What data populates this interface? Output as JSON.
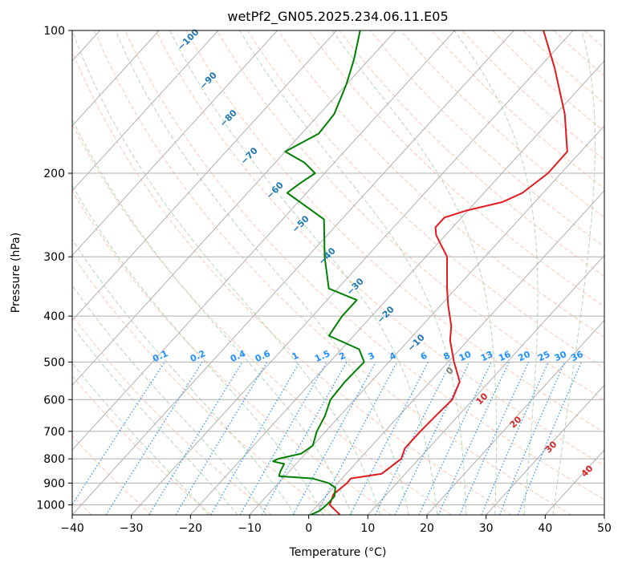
{
  "chart_data": {
    "type": "line",
    "title": "wetPf2_GN05.2025.234.06.11.E05",
    "xlabel": "Temperature (°C)",
    "ylabel": "Pressure (hPa)",
    "xlim": [
      -40,
      50
    ],
    "ylim": [
      1050,
      100
    ],
    "y_scale": "log",
    "skew": true,
    "grid": true,
    "x_ticks": [
      "−40",
      "−30",
      "−20",
      "−10",
      "0",
      "10",
      "20",
      "30",
      "40",
      "50"
    ],
    "y_ticks": [
      "100",
      "200",
      "300",
      "400",
      "500",
      "600",
      "700",
      "800",
      "900",
      "1000"
    ],
    "series": [
      {
        "color": "#e31a1c",
        "points": [
          [
            1050,
            5.3
          ],
          [
            1000,
            2.0
          ],
          [
            950,
            1.0
          ],
          [
            900,
            1.6
          ],
          [
            880,
            1.5
          ],
          [
            860,
            6.0
          ],
          [
            800,
            7.0
          ],
          [
            760,
            6.0
          ],
          [
            700,
            6.0
          ],
          [
            650,
            6.2
          ],
          [
            600,
            6.5
          ],
          [
            550,
            5.0
          ],
          [
            500,
            1.0
          ],
          [
            450,
            -3.0
          ],
          [
            420,
            -5.0
          ],
          [
            380,
            -8.7
          ],
          [
            350,
            -11.5
          ],
          [
            300,
            -16.4
          ],
          [
            270,
            -21.6
          ],
          [
            260,
            -22.9
          ],
          [
            248,
            -22.9
          ],
          [
            240,
            -20.4
          ],
          [
            230,
            -15.5
          ],
          [
            220,
            -13.5
          ],
          [
            200,
            -12.2
          ],
          [
            180,
            -12.3
          ],
          [
            150,
            -18.5
          ],
          [
            120,
            -27.3
          ],
          [
            100,
            -35.0
          ]
        ]
      },
      {
        "color": "#008000",
        "points": [
          [
            1050,
            0.3
          ],
          [
            1030,
            1.2
          ],
          [
            1000,
            1.5
          ],
          [
            960,
            1.5
          ],
          [
            920,
            0.3
          ],
          [
            900,
            -1.5
          ],
          [
            880,
            -5.0
          ],
          [
            870,
            -11.0
          ],
          [
            850,
            -11.5
          ],
          [
            820,
            -12.0
          ],
          [
            810,
            -14.3
          ],
          [
            800,
            -13.8
          ],
          [
            780,
            -10.7
          ],
          [
            750,
            -10.0
          ],
          [
            700,
            -11.5
          ],
          [
            650,
            -12.5
          ],
          [
            600,
            -14.1
          ],
          [
            550,
            -14.4
          ],
          [
            500,
            -14.2
          ],
          [
            470,
            -17.0
          ],
          [
            440,
            -24.2
          ],
          [
            400,
            -25.0
          ],
          [
            370,
            -25.0
          ],
          [
            350,
            -31.5
          ],
          [
            300,
            -37.1
          ],
          [
            250,
            -43.0
          ],
          [
            220,
            -53.3
          ],
          [
            210,
            -52.6
          ],
          [
            200,
            -51.6
          ],
          [
            190,
            -55.0
          ],
          [
            180,
            -60.0
          ],
          [
            165,
            -57.1
          ],
          [
            150,
            -57.5
          ],
          [
            130,
            -60.0
          ],
          [
            115,
            -62.6
          ],
          [
            100,
            -66.0
          ]
        ]
      }
    ],
    "mixing_ratio_labels": [
      "0.1",
      "0.2",
      "0.4",
      "0.6",
      "1",
      "1.5",
      "2",
      "3",
      "4",
      "6",
      "8",
      "10",
      "13",
      "16",
      "20",
      "25",
      "30",
      "36"
    ],
    "moist_adiabat_labels": [
      "−100",
      "−90",
      "−80",
      "−70",
      "−60",
      "−50",
      "−40",
      "−30",
      "−20",
      "−10"
    ],
    "theta_e_labels": [
      "0",
      "10",
      "20",
      "30",
      "40"
    ],
    "colors": {
      "temperature": "#e31a1c",
      "dewpoint": "#008000",
      "isobar": "#b0b0b0",
      "isotherm": "#b0b0b0",
      "dry_adiabat": "#ffa07a",
      "moist_adiabat": "#90c890",
      "mixing_ratio": "#1e90ff",
      "theta_e_label": "#d62728",
      "wetbulb_label": "#1f77b4"
    }
  }
}
